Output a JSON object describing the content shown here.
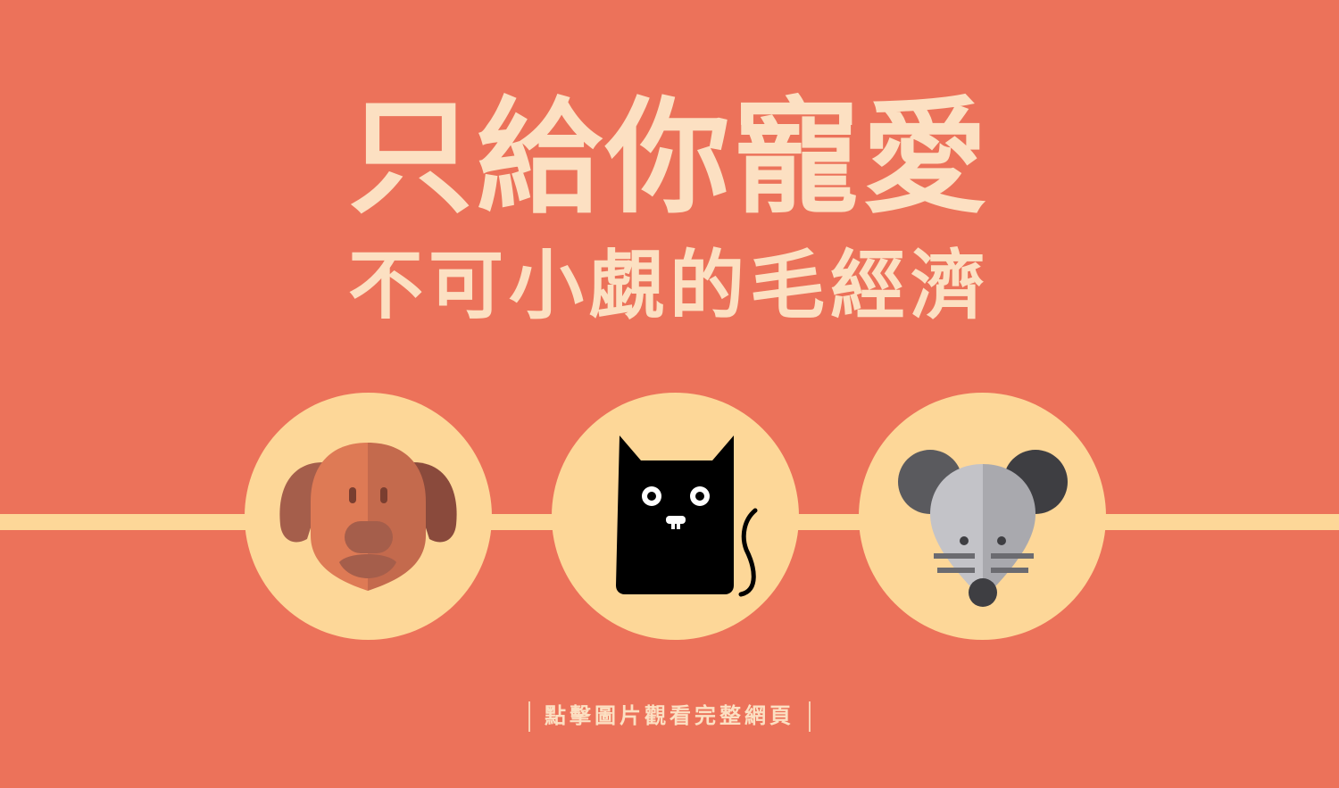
{
  "banner": {
    "title_main": "只給你寵愛",
    "title_sub": "不可小覷的毛經濟",
    "cta_text": "點擊圖片觀看完整網頁"
  },
  "icons": [
    "dog-icon",
    "cat-icon",
    "mouse-icon"
  ],
  "colors": {
    "background": "#EC725A",
    "accent": "#FDD798",
    "text": "#FCE0C2"
  }
}
